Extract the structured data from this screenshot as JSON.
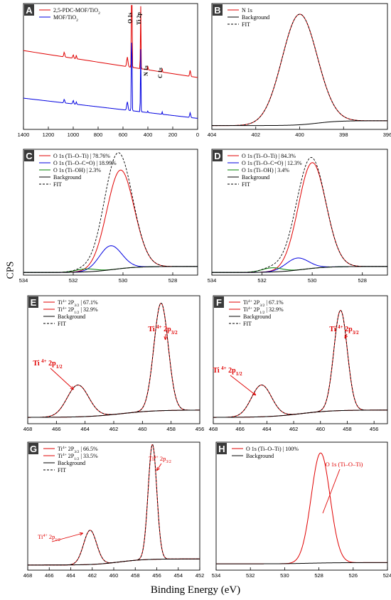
{
  "figure": {
    "ylabel": "CPS",
    "xlabel": "Binding Energy (eV)"
  },
  "chart_data": [
    {
      "panel": "A",
      "type": "line",
      "xlim": [
        1400,
        0
      ],
      "xticks": [
        1400,
        1200,
        1000,
        800,
        600,
        400,
        200,
        0
      ],
      "legend": [
        {
          "name": "2,5-PDC-MOF/TiO",
          "sub": "2",
          "color": "#e00000",
          "style": "solid"
        },
        {
          "name": "MOF/TiO",
          "sub": "2",
          "color": "#0000e0",
          "style": "solid"
        }
      ],
      "annotations": [
        {
          "text": "O 1s",
          "x": 530
        },
        {
          "text": "Ti 2p",
          "x": 458
        },
        {
          "text": "N 1s",
          "x": 400
        },
        {
          "text": "C 1s",
          "x": 285
        }
      ],
      "series": [
        {
          "name": "2,5-PDC-MOF/TiO2",
          "color": "#e00000",
          "base": 0.42,
          "slope": 0.00016,
          "peaks": [
            [
              1072,
              4,
              0.04
            ],
            [
              1000,
              4,
              0.03
            ],
            [
              975,
              3,
              0.03
            ],
            [
              565,
              5,
              0.08
            ],
            [
              530,
              2.5,
              0.95
            ],
            [
              458,
              2,
              0.55
            ],
            [
              400,
              2,
              0.04
            ],
            [
              285,
              2,
              0.03
            ],
            [
              60,
              4,
              0.05
            ]
          ]
        },
        {
          "name": "MOF/TiO2",
          "color": "#0000e0",
          "base": 0.08,
          "slope": 0.00012,
          "peaks": [
            [
              1072,
              4,
              0.03
            ],
            [
              1000,
              4,
              0.03
            ],
            [
              975,
              3,
              0.02
            ],
            [
              565,
              5,
              0.07
            ],
            [
              530,
              2.5,
              0.78
            ],
            [
              458,
              2,
              0.55
            ],
            [
              400,
              2,
              0.015
            ],
            [
              285,
              2,
              0.02
            ],
            [
              60,
              4,
              0.04
            ]
          ]
        }
      ]
    },
    {
      "panel": "B",
      "type": "line",
      "xlim": [
        404,
        396
      ],
      "xticks": [
        404,
        402,
        400,
        398,
        396
      ],
      "legend": [
        {
          "name": "N 1s",
          "color": "#e00000",
          "style": "solid"
        },
        {
          "name": "Background",
          "color": "#000000",
          "style": "solid"
        },
        {
          "name": "FIT",
          "color": "#000000",
          "style": "dashed"
        }
      ],
      "annotations": [],
      "series": [
        {
          "name": "N 1s",
          "color": "#e00000",
          "bg": "B",
          "peaks": [
            [
              400.0,
              0.8,
              0.92
            ]
          ]
        },
        {
          "name": "Background",
          "color": "#000000",
          "bgline": "B"
        },
        {
          "name": "FIT",
          "color": "#000000",
          "dashed": true,
          "bg": "B",
          "peaks": [
            [
              400.0,
              0.8,
              0.92
            ]
          ]
        }
      ]
    },
    {
      "panel": "C",
      "type": "line",
      "xlim": [
        534,
        527
      ],
      "xticks": [
        534,
        532,
        530,
        528
      ],
      "legend": [
        {
          "name": "O 1s (Ti–O–Ti) | 78.76%",
          "color": "#e00000",
          "style": "solid"
        },
        {
          "name": "O 1s (Ti–O–C=O) | 18.99%",
          "color": "#0000e0",
          "style": "solid"
        },
        {
          "name": "O 1s (Ti–OH) | 2.3%",
          "color": "#008000",
          "style": "solid"
        },
        {
          "name": "Background",
          "color": "#000000",
          "style": "solid"
        },
        {
          "name": "FIT",
          "color": "#000000",
          "style": "dashed"
        }
      ],
      "annotations": [],
      "series": [
        {
          "name": "O 1s (Ti–O–Ti)",
          "color": "#e00000",
          "bg": "C",
          "peaks": [
            [
              530.1,
              0.55,
              0.82
            ]
          ]
        },
        {
          "name": "O 1s (Ti–O–C=O)",
          "color": "#0000e0",
          "bg": "C",
          "peaks": [
            [
              530.5,
              0.45,
              0.2
            ]
          ]
        },
        {
          "name": "O 1s (Ti–OH)",
          "color": "#008000",
          "bg": "C",
          "peaks": [
            [
              531.5,
              0.4,
              0.025
            ]
          ]
        },
        {
          "name": "Background",
          "color": "#000000",
          "bgline": "C"
        },
        {
          "name": "FIT",
          "color": "#000000",
          "dashed": true,
          "bg": "C",
          "peaks": [
            [
              530.1,
              0.55,
              0.82
            ],
            [
              530.5,
              0.45,
              0.2
            ],
            [
              531.5,
              0.4,
              0.025
            ]
          ]
        }
      ]
    },
    {
      "panel": "D",
      "type": "line",
      "xlim": [
        534,
        527
      ],
      "xticks": [
        534,
        532,
        530,
        528
      ],
      "legend": [
        {
          "name": "O 1s (Ti–O–Ti) | 84.3%",
          "color": "#e00000",
          "style": "solid"
        },
        {
          "name": "O 1s (Ti–O–C=O) | 12.3%",
          "color": "#0000e0",
          "style": "solid"
        },
        {
          "name": "O 1s (Ti–OH) | 3.4%",
          "color": "#008000",
          "style": "solid"
        },
        {
          "name": "Background",
          "color": "#000000",
          "style": "solid"
        },
        {
          "name": "FIT",
          "color": "#000000",
          "style": "dashed"
        }
      ],
      "annotations": [],
      "series": [
        {
          "name": "O 1s (Ti–O–Ti)",
          "color": "#e00000",
          "bg": "C",
          "peaks": [
            [
              530.0,
              0.55,
              0.88
            ]
          ]
        },
        {
          "name": "O 1s (Ti–O–C=O)",
          "color": "#0000e0",
          "bg": "C",
          "peaks": [
            [
              530.6,
              0.45,
              0.1
            ]
          ]
        },
        {
          "name": "O 1s (Ti–OH)",
          "color": "#008000",
          "bg": "C",
          "peaks": [
            [
              531.6,
              0.4,
              0.035
            ]
          ]
        },
        {
          "name": "Background",
          "color": "#000000",
          "bgline": "C"
        },
        {
          "name": "FIT",
          "color": "#000000",
          "dashed": true,
          "bg": "C",
          "peaks": [
            [
              530.0,
              0.55,
              0.88
            ],
            [
              530.6,
              0.45,
              0.1
            ],
            [
              531.6,
              0.4,
              0.035
            ]
          ]
        }
      ]
    },
    {
      "panel": "E",
      "type": "line",
      "xlim": [
        468,
        456
      ],
      "xticks": [
        468,
        466,
        464,
        462,
        460,
        458,
        456
      ],
      "legend": [
        {
          "name": "Ti",
          "sup": "4+",
          "rest": " 2P",
          "sub": "3/2",
          "tail": " | 67.1%",
          "color": "#e00000",
          "style": "solid"
        },
        {
          "name": "Ti",
          "sup": "4+",
          "rest": " 2P",
          "sub": "1/2",
          "tail": " | 32.9%",
          "color": "#e00000",
          "style": "solid"
        },
        {
          "name": "Background",
          "color": "#000000",
          "style": "solid"
        },
        {
          "name": "FIT",
          "color": "#000000",
          "style": "dashed"
        }
      ],
      "annotations": [
        {
          "text": "Ti ",
          "sup": "4+",
          "rest": " 2p",
          "sub": "3/2",
          "x": 458.7
        },
        {
          "text": "Ti ",
          "sup": "4+",
          "rest": " 2p",
          "sub": "1/2",
          "x": 464.5
        }
      ],
      "series": [
        {
          "name": "Ti4+ 2P3/2",
          "color": "#e00000",
          "bg": "E",
          "peaks": [
            [
              458.7,
              0.5,
              0.88
            ]
          ]
        },
        {
          "name": "Ti4+ 2P1/2",
          "color": "#e00000",
          "bg": "E",
          "peaks": [
            [
              464.5,
              0.75,
              0.26
            ]
          ]
        },
        {
          "name": "Background",
          "color": "#000000",
          "bgline": "E"
        },
        {
          "name": "FIT",
          "color": "#000000",
          "dashed": true,
          "bg": "E",
          "peaks": [
            [
              458.7,
              0.5,
              0.88
            ],
            [
              464.5,
              0.75,
              0.26
            ]
          ]
        }
      ]
    },
    {
      "panel": "F",
      "type": "line",
      "xlim": [
        468,
        455
      ],
      "xticks": [
        468,
        466,
        464,
        462,
        460,
        458,
        456
      ],
      "legend": [
        {
          "name": "Ti",
          "sup": "4+",
          "rest": " 2P",
          "sub": "3/2",
          "tail": " | 67.1%",
          "color": "#e00000",
          "style": "solid"
        },
        {
          "name": "Ti",
          "sup": "4+",
          "rest": " 2P",
          "sub": "1/2",
          "tail": " | 32.9%",
          "color": "#e00000",
          "style": "solid"
        },
        {
          "name": "Background",
          "color": "#000000",
          "style": "solid"
        },
        {
          "name": "FIT",
          "color": "#000000",
          "style": "dashed"
        }
      ],
      "annotations": [
        {
          "text": "Ti ",
          "sup": "4+",
          "rest": " 2p",
          "sub": "3/2",
          "x": 458.5
        },
        {
          "text": "Ti ",
          "sup": "4+",
          "rest": " 2p",
          "sub": "1/2",
          "x": 464.4
        }
      ],
      "series": [
        {
          "name": "Ti4+ 2P3/2",
          "color": "#e00000",
          "bg": "E",
          "peaks": [
            [
              458.5,
              0.5,
              0.82
            ]
          ]
        },
        {
          "name": "Ti4+ 2P1/2",
          "color": "#e00000",
          "bg": "E",
          "peaks": [
            [
              464.4,
              0.75,
              0.26
            ]
          ]
        },
        {
          "name": "Background",
          "color": "#000000",
          "bgline": "E"
        },
        {
          "name": "FIT",
          "color": "#000000",
          "dashed": true,
          "bg": "E",
          "peaks": [
            [
              458.5,
              0.5,
              0.82
            ],
            [
              464.4,
              0.75,
              0.26
            ]
          ]
        }
      ]
    },
    {
      "panel": "G",
      "type": "line",
      "xlim": [
        468,
        452
      ],
      "xticks": [
        468,
        466,
        464,
        462,
        460,
        458,
        456,
        454,
        452
      ],
      "legend": [
        {
          "name": "Ti",
          "sup": "4+",
          "rest": " 2P",
          "sub": "3/2",
          "tail": " | 66.5%",
          "color": "#e00000",
          "style": "solid"
        },
        {
          "name": "Ti",
          "sup": "4+",
          "rest": " 2P",
          "sub": "1/2",
          "tail": " | 33.5%",
          "color": "#e00000",
          "style": "solid"
        },
        {
          "name": "Background",
          "color": "#000000",
          "style": "solid"
        },
        {
          "name": "FIT",
          "color": "#000000",
          "style": "dashed"
        }
      ],
      "annotations": [
        {
          "text": "Ti",
          "sup": "4+",
          "rest": " 2p",
          "sub": "3/2",
          "x": 456.4
        },
        {
          "text": "Ti",
          "sup": "4+",
          "rest": " 2p",
          "sub": "1/2",
          "x": 462.2
        }
      ],
      "series": [
        {
          "name": "Ti4+ 2P3/2",
          "color": "#e00000",
          "bg": "G",
          "peaks": [
            [
              456.4,
              0.4,
              0.94
            ]
          ]
        },
        {
          "name": "Ti4+ 2P1/2",
          "color": "#e00000",
          "bg": "G",
          "peaks": [
            [
              462.2,
              0.6,
              0.28
            ]
          ]
        },
        {
          "name": "Background",
          "color": "#000000",
          "bgline": "G"
        },
        {
          "name": "FIT",
          "color": "#000000",
          "dashed": true,
          "bg": "G",
          "peaks": [
            [
              456.4,
              0.4,
              0.94
            ],
            [
              462.2,
              0.6,
              0.28
            ]
          ]
        }
      ]
    },
    {
      "panel": "H",
      "type": "line",
      "xlim": [
        534,
        524
      ],
      "xticks": [
        534,
        532,
        530,
        528,
        526,
        524
      ],
      "legend": [
        {
          "name": "O 1s (Ti–O–Ti) | 100%",
          "color": "#e00000",
          "style": "solid"
        },
        {
          "name": "Background",
          "color": "#000000",
          "style": "solid"
        }
      ],
      "annotations": [
        {
          "text": "O 1s (Ti–O–Ti)",
          "x": 527.9
        }
      ],
      "series": [
        {
          "name": "O 1s (Ti–O–Ti)",
          "color": "#e00000",
          "bg": "H",
          "peaks": [
            [
              527.9,
              0.55,
              0.9
            ]
          ]
        },
        {
          "name": "Background",
          "color": "#000000",
          "bgline": "H"
        }
      ]
    }
  ]
}
